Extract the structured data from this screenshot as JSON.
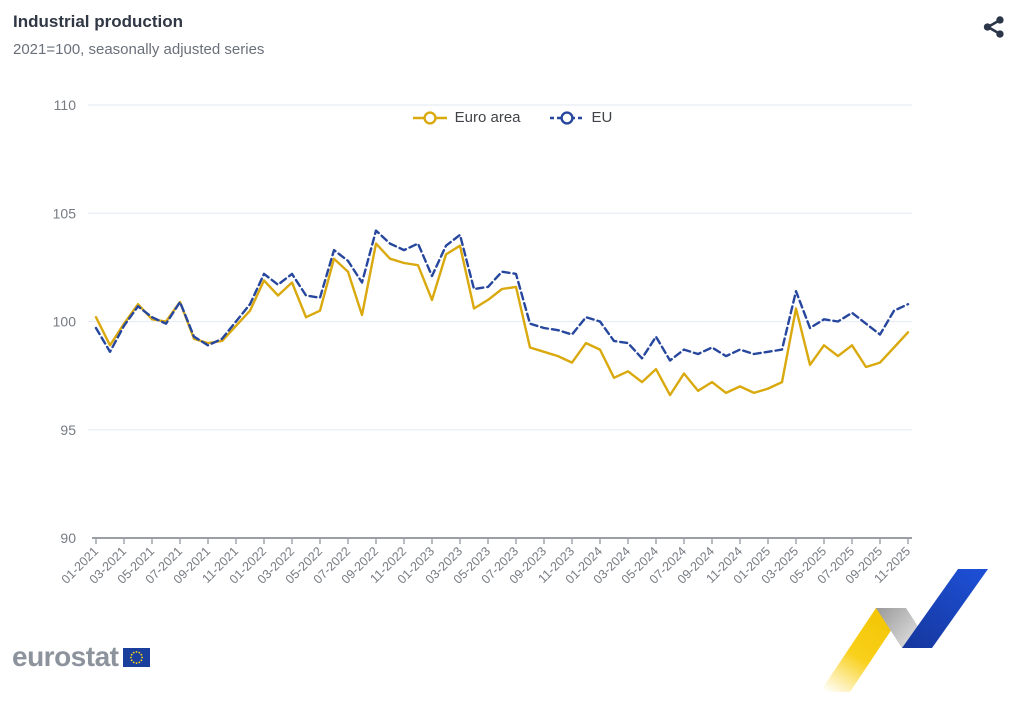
{
  "header": {
    "title": "Industrial production",
    "subtitle": "2021=100, seasonally adjusted series"
  },
  "toolbar": {
    "share_icon": "share-icon"
  },
  "footer": {
    "logo_text": "eurostat",
    "logo_flag": "eu-flag"
  },
  "chart_data": {
    "type": "line",
    "title": "Industrial production",
    "subtitle": "2021=100, seasonally adjusted series",
    "grid": "horizontal",
    "legend_position": "top-center",
    "ylim": [
      90,
      110
    ],
    "yticks": [
      90,
      95,
      100,
      105,
      110
    ],
    "x_label_every": 2,
    "x": [
      "01-2021",
      "02-2021",
      "03-2021",
      "04-2021",
      "05-2021",
      "06-2021",
      "07-2021",
      "08-2021",
      "09-2021",
      "10-2021",
      "11-2021",
      "12-2021",
      "01-2022",
      "02-2022",
      "03-2022",
      "04-2022",
      "05-2022",
      "06-2022",
      "07-2022",
      "08-2022",
      "09-2022",
      "10-2022",
      "11-2022",
      "12-2022",
      "01-2023",
      "02-2023",
      "03-2023",
      "04-2023",
      "05-2023",
      "06-2023",
      "07-2023",
      "08-2023",
      "09-2023",
      "10-2023",
      "11-2023",
      "12-2023",
      "01-2024",
      "02-2024",
      "03-2024",
      "04-2024",
      "05-2024",
      "06-2024",
      "07-2024",
      "08-2024",
      "09-2024",
      "10-2024",
      "11-2024",
      "12-2024",
      "01-2025",
      "02-2025",
      "03-2025",
      "04-2025",
      "05-2025",
      "06-2025",
      "07-2025",
      "08-2025",
      "09-2025",
      "10-2025",
      "11-2025"
    ],
    "series": [
      {
        "name": "Euro area",
        "color": "#d9a90e",
        "style": "solid",
        "values": [
          100.2,
          98.9,
          99.9,
          100.8,
          100.1,
          100.0,
          100.9,
          99.2,
          99.0,
          99.1,
          99.8,
          100.5,
          101.9,
          101.2,
          101.8,
          100.2,
          100.5,
          102.9,
          102.3,
          100.3,
          103.6,
          102.9,
          102.7,
          102.6,
          101.0,
          103.1,
          103.5,
          100.6,
          101.0,
          101.5,
          101.6,
          98.8,
          98.6,
          98.4,
          98.1,
          99.0,
          98.7,
          97.4,
          97.7,
          97.2,
          97.8,
          96.6,
          97.6,
          96.8,
          97.2,
          96.7,
          97.0,
          96.7,
          96.9,
          97.2,
          100.6,
          98.0,
          98.9,
          98.4,
          98.9,
          97.9,
          98.1,
          98.8,
          99.5
        ]
      },
      {
        "name": "EU",
        "color": "#27479e",
        "style": "dashed",
        "values": [
          99.7,
          98.6,
          99.8,
          100.7,
          100.2,
          99.9,
          100.9,
          99.3,
          98.9,
          99.2,
          100.0,
          100.8,
          102.2,
          101.7,
          102.2,
          101.2,
          101.1,
          103.3,
          102.8,
          101.8,
          104.2,
          103.6,
          103.3,
          103.6,
          102.1,
          103.5,
          104.0,
          101.5,
          101.6,
          102.3,
          102.2,
          99.9,
          99.7,
          99.6,
          99.4,
          100.2,
          100.0,
          99.1,
          99.0,
          98.3,
          99.3,
          98.2,
          98.7,
          98.5,
          98.8,
          98.4,
          98.7,
          98.5,
          98.6,
          98.7,
          101.4,
          99.7,
          100.1,
          100.0,
          100.4,
          99.9,
          99.4,
          100.5,
          100.8
        ]
      }
    ],
    "colors": {
      "grid": "#e8edf5",
      "axis": "#9b9fa5",
      "tick_text": "#767b82",
      "title_text": "#313845",
      "subtitle_text": "#6a707a"
    }
  }
}
